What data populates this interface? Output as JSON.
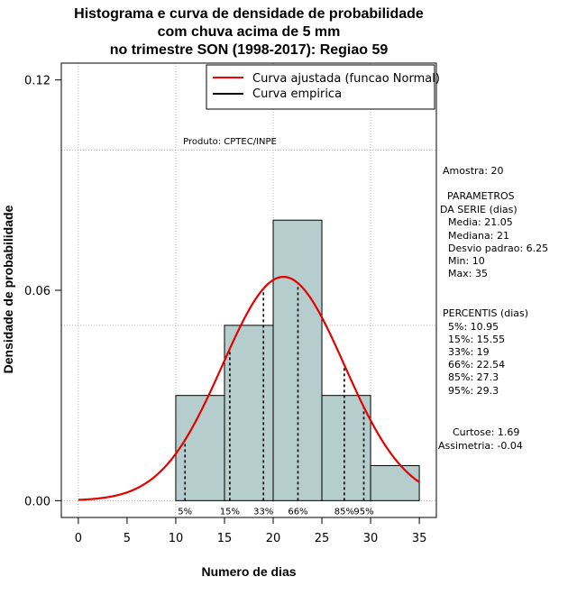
{
  "chart_data": {
    "type": "bar",
    "title_lines": [
      "Histograma e curva de densidade de probabilidade",
      "com chuva acima de 5 mm",
      "no trimestre SON (1998-2017): Regiao 59"
    ],
    "xlabel": "Numero de dias",
    "ylabel": "Densidade de probabilidade",
    "xlim": [
      -1.75,
      36.75
    ],
    "ylim": [
      -0.0048,
      0.1248
    ],
    "x_ticks": [
      0,
      5,
      10,
      15,
      20,
      25,
      30,
      35
    ],
    "y_ticks": [
      0.0,
      0.06,
      0.12
    ],
    "y_tick_labels": [
      "0.00",
      "0.06",
      "0.12"
    ],
    "grid_x": [
      0,
      10,
      20,
      30
    ],
    "grid_y": [
      0.0,
      0.05,
      0.1
    ],
    "bin_edges": [
      10,
      15,
      20,
      25,
      30,
      35
    ],
    "values": [
      0.03,
      0.05,
      0.08,
      0.03,
      0.01
    ],
    "normal_mean": 21.05,
    "normal_sd": 6.25,
    "curve_range": [
      0,
      35
    ],
    "percentiles": [
      {
        "label": "5%",
        "x": 10.95
      },
      {
        "label": "15%",
        "x": 15.55
      },
      {
        "label": "33%",
        "x": 19
      },
      {
        "label": "66%",
        "x": 22.54
      },
      {
        "label": "85%",
        "x": 27.3
      },
      {
        "label": "95%",
        "x": 29.3
      }
    ],
    "legend": [
      {
        "label": "Curva ajustada (funcao Normal)",
        "color": "#ff0000"
      },
      {
        "label": "Curva empirica",
        "color": "#000000"
      }
    ],
    "legend_position": "top-right",
    "product_label": "Produto: CPTEC/INPE",
    "bar_color": "#b5cdcd",
    "curve_color": "#e60000"
  },
  "side_panel": {
    "sample": "Amostra: 20",
    "params_title": "PARAMETROS",
    "params_subtitle": "DA SERIE (dias)",
    "media": "Media: 21.05",
    "mediana": "Mediana: 21",
    "desvio": "Desvio padrao: 6.25",
    "min": "Min: 10",
    "max": "Max: 35",
    "percentis_title": "PERCENTIS (dias)",
    "p5": "5%: 10.95",
    "p15": "15%: 15.55",
    "p33": "33%: 19",
    "p66": "66%: 22.54",
    "p85": "85%: 27.3",
    "p95": "95%: 29.3",
    "curtose": "Curtose: 1.69",
    "assimetria": "Assimetria: -0.04"
  }
}
